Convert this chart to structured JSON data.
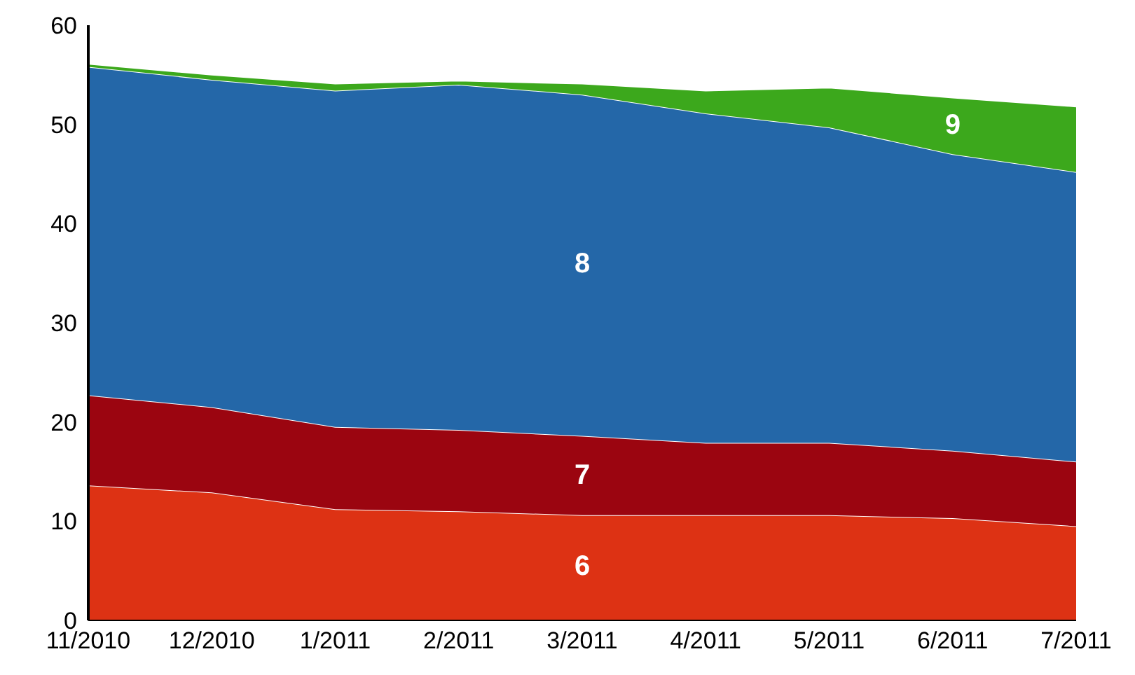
{
  "chart_data": {
    "type": "area",
    "stacked": true,
    "categories": [
      "11/2010",
      "12/2010",
      "1/2011",
      "2/2011",
      "3/2011",
      "4/2011",
      "5/2011",
      "6/2011",
      "7/2011"
    ],
    "series": [
      {
        "name": "6",
        "color": "#dd3214",
        "values": [
          13.6,
          12.9,
          11.2,
          11.0,
          10.6,
          10.6,
          10.6,
          10.3,
          9.5
        ]
      },
      {
        "name": "7",
        "color": "#9b0510",
        "values": [
          9.1,
          8.6,
          8.3,
          8.2,
          8.0,
          7.3,
          7.3,
          6.8,
          6.5
        ]
      },
      {
        "name": "8",
        "color": "#2467a8",
        "values": [
          33.1,
          33.0,
          33.9,
          34.8,
          34.4,
          33.2,
          31.8,
          29.9,
          29.2
        ]
      },
      {
        "name": "9",
        "color": "#3ca81c",
        "values": [
          0.3,
          0.5,
          0.7,
          0.4,
          1.1,
          2.3,
          4.0,
          5.7,
          6.6
        ]
      }
    ],
    "ylim": [
      0,
      60
    ],
    "yticks": [
      0,
      10,
      20,
      30,
      40,
      50,
      60
    ],
    "grid": false,
    "legend": false
  }
}
